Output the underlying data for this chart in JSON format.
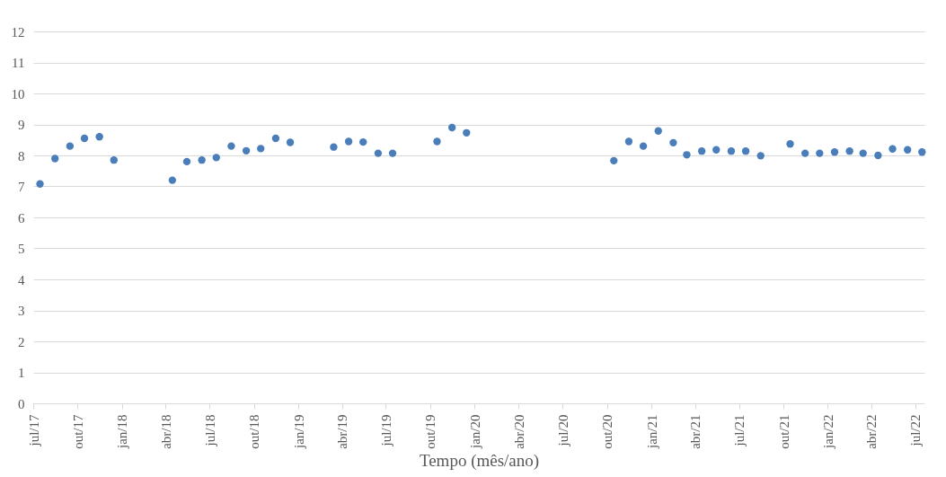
{
  "chart_data": {
    "type": "scatter",
    "xlabel": "Tempo (mês/ano)",
    "x": [
      "2017-07-15",
      "2017-08-15",
      "2017-09-15",
      "2017-10-15",
      "2017-11-15",
      "2017-12-15",
      "2018-04-15",
      "2018-05-15",
      "2018-06-15",
      "2018-07-15",
      "2018-08-15",
      "2018-09-15",
      "2018-10-15",
      "2018-11-15",
      "2018-12-15",
      "2019-03-15",
      "2019-04-15",
      "2019-05-15",
      "2019-06-15",
      "2019-07-15",
      "2019-10-15",
      "2019-11-15",
      "2019-12-15",
      "2020-10-15",
      "2020-11-15",
      "2020-12-15",
      "2021-01-15",
      "2021-02-15",
      "2021-03-15",
      "2021-04-15",
      "2021-05-15",
      "2021-06-15",
      "2021-07-15",
      "2021-08-15",
      "2021-10-15",
      "2021-11-15",
      "2021-12-15",
      "2022-01-15",
      "2022-02-15",
      "2022-03-15",
      "2022-04-15",
      "2022-05-15",
      "2022-06-15",
      "2022-07-15"
    ],
    "series": [
      {
        "color": "#4a7ebb",
        "values": [
          7.08,
          7.9,
          8.3,
          8.55,
          8.6,
          7.85,
          7.2,
          7.8,
          7.85,
          7.93,
          8.3,
          8.15,
          8.22,
          8.55,
          8.42,
          8.27,
          8.45,
          8.43,
          8.07,
          8.07,
          8.45,
          8.9,
          8.73,
          7.83,
          8.45,
          8.3,
          8.79,
          8.41,
          8.02,
          8.14,
          8.18,
          8.14,
          8.14,
          7.99,
          8.37,
          8.07,
          8.07,
          8.11,
          8.14,
          8.07,
          8.0,
          8.21,
          8.18,
          8.11
        ]
      }
    ],
    "xlim": [
      "2017-07",
      "2022-07-20"
    ],
    "xticks": [
      {
        "value": "2017-07",
        "label": "jul/17"
      },
      {
        "value": "2017-10",
        "label": "out/17"
      },
      {
        "value": "2018-01",
        "label": "jan/18"
      },
      {
        "value": "2018-04",
        "label": "abr/18"
      },
      {
        "value": "2018-07",
        "label": "jul/18"
      },
      {
        "value": "2018-10",
        "label": "out/18"
      },
      {
        "value": "2019-01",
        "label": "jan/19"
      },
      {
        "value": "2019-04",
        "label": "abr/19"
      },
      {
        "value": "2019-07",
        "label": "jul/19"
      },
      {
        "value": "2019-10",
        "label": "out/19"
      },
      {
        "value": "2020-01",
        "label": "jan/20"
      },
      {
        "value": "2020-04",
        "label": "abr/20"
      },
      {
        "value": "2020-07",
        "label": "jul/20"
      },
      {
        "value": "2020-10",
        "label": "out/20"
      },
      {
        "value": "2021-01",
        "label": "jan/21"
      },
      {
        "value": "2021-04",
        "label": "abr/21"
      },
      {
        "value": "2021-07",
        "label": "jul/21"
      },
      {
        "value": "2021-10",
        "label": "out/21"
      },
      {
        "value": "2022-01",
        "label": "jan/22"
      },
      {
        "value": "2022-04",
        "label": "abr/22"
      },
      {
        "value": "2022-07",
        "label": "jul/22"
      }
    ],
    "ylim": [
      0,
      12
    ],
    "yticks": [
      0,
      1,
      2,
      3,
      4,
      5,
      6,
      7,
      8,
      9,
      10,
      11,
      12
    ],
    "grid": "y",
    "marker": "circle",
    "legend": false
  }
}
